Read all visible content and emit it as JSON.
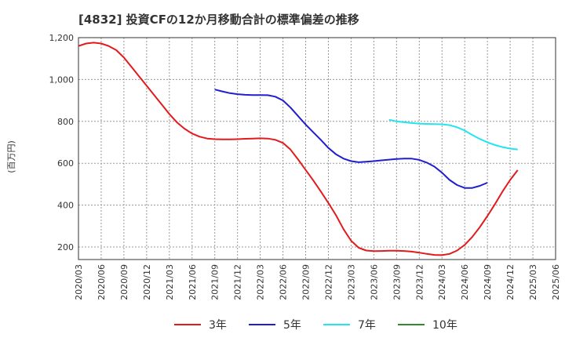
{
  "chart_data": {
    "type": "line",
    "title": "[4832]  投資CFの12か月移動合計の標準偏差の推移",
    "ylabel": "(百万円)",
    "xlabel": "",
    "ylim": [
      140,
      1200
    ],
    "yticks": [
      200,
      400,
      600,
      800,
      1000,
      1200
    ],
    "ytick_labels": [
      "200",
      "400",
      "600",
      "800",
      "1,000",
      "1,200"
    ],
    "x_ticks": [
      "2020/03",
      "2020/06",
      "2020/09",
      "2020/12",
      "2021/03",
      "2021/06",
      "2021/09",
      "2021/12",
      "2022/03",
      "2022/06",
      "2022/09",
      "2022/12",
      "2023/03",
      "2023/06",
      "2023/09",
      "2023/12",
      "2024/03",
      "2024/06",
      "2024/09",
      "2024/12",
      "2025/03",
      "2025/06"
    ],
    "grid": true,
    "legend_position": "bottom",
    "series": [
      {
        "name": "3年",
        "color": "#e31a1c",
        "points": [
          [
            "2020/03",
            1160
          ],
          [
            "2020/04",
            1172
          ],
          [
            "2020/05",
            1176
          ],
          [
            "2020/06",
            1172
          ],
          [
            "2020/07",
            1160
          ],
          [
            "2020/08",
            1140
          ],
          [
            "2020/09",
            1105
          ],
          [
            "2020/10",
            1060
          ],
          [
            "2020/11",
            1015
          ],
          [
            "2020/12",
            970
          ],
          [
            "2021/01",
            925
          ],
          [
            "2021/02",
            880
          ],
          [
            "2021/03",
            835
          ],
          [
            "2021/04",
            795
          ],
          [
            "2021/05",
            765
          ],
          [
            "2021/06",
            742
          ],
          [
            "2021/07",
            727
          ],
          [
            "2021/08",
            718
          ],
          [
            "2021/09",
            715
          ],
          [
            "2021/10",
            714
          ],
          [
            "2021/11",
            714
          ],
          [
            "2021/12",
            715
          ],
          [
            "2022/01",
            717
          ],
          [
            "2022/02",
            718
          ],
          [
            "2022/03",
            719
          ],
          [
            "2022/04",
            718
          ],
          [
            "2022/05",
            712
          ],
          [
            "2022/06",
            697
          ],
          [
            "2022/07",
            665
          ],
          [
            "2022/08",
            618
          ],
          [
            "2022/09",
            568
          ],
          [
            "2022/10",
            518
          ],
          [
            "2022/11",
            465
          ],
          [
            "2022/12",
            410
          ],
          [
            "2023/01",
            352
          ],
          [
            "2023/02",
            285
          ],
          [
            "2023/03",
            230
          ],
          [
            "2023/04",
            196
          ],
          [
            "2023/05",
            183
          ],
          [
            "2023/06",
            180
          ],
          [
            "2023/07",
            181
          ],
          [
            "2023/08",
            182
          ],
          [
            "2023/09",
            182
          ],
          [
            "2023/10",
            181
          ],
          [
            "2023/11",
            178
          ],
          [
            "2023/12",
            173
          ],
          [
            "2024/01",
            167
          ],
          [
            "2024/02",
            162
          ],
          [
            "2024/03",
            161
          ],
          [
            "2024/04",
            167
          ],
          [
            "2024/05",
            183
          ],
          [
            "2024/06",
            210
          ],
          [
            "2024/07",
            248
          ],
          [
            "2024/08",
            295
          ],
          [
            "2024/09",
            348
          ],
          [
            "2024/10",
            405
          ],
          [
            "2024/11",
            465
          ],
          [
            "2024/12",
            520
          ],
          [
            "2025/01",
            567
          ]
        ]
      },
      {
        "name": "5年",
        "color": "#1f1fcf",
        "points": [
          [
            "2021/09",
            952
          ],
          [
            "2021/10",
            943
          ],
          [
            "2021/11",
            935
          ],
          [
            "2021/12",
            930
          ],
          [
            "2022/01",
            927
          ],
          [
            "2022/02",
            926
          ],
          [
            "2022/03",
            926
          ],
          [
            "2022/04",
            925
          ],
          [
            "2022/05",
            918
          ],
          [
            "2022/06",
            900
          ],
          [
            "2022/07",
            866
          ],
          [
            "2022/08",
            825
          ],
          [
            "2022/09",
            785
          ],
          [
            "2022/10",
            748
          ],
          [
            "2022/11",
            712
          ],
          [
            "2022/12",
            673
          ],
          [
            "2023/01",
            643
          ],
          [
            "2023/02",
            622
          ],
          [
            "2023/03",
            610
          ],
          [
            "2023/04",
            605
          ],
          [
            "2023/05",
            607
          ],
          [
            "2023/06",
            610
          ],
          [
            "2023/07",
            614
          ],
          [
            "2023/08",
            617
          ],
          [
            "2023/09",
            620
          ],
          [
            "2023/10",
            622
          ],
          [
            "2023/11",
            622
          ],
          [
            "2023/12",
            616
          ],
          [
            "2024/01",
            603
          ],
          [
            "2024/02",
            584
          ],
          [
            "2024/03",
            555
          ],
          [
            "2024/04",
            520
          ],
          [
            "2024/05",
            496
          ],
          [
            "2024/06",
            482
          ],
          [
            "2024/07",
            482
          ],
          [
            "2024/08",
            492
          ],
          [
            "2024/09",
            507
          ]
        ]
      },
      {
        "name": "7年",
        "color": "#22e5f0",
        "points": [
          [
            "2023/08",
            808
          ],
          [
            "2023/09",
            800
          ],
          [
            "2023/10",
            796
          ],
          [
            "2023/11",
            792
          ],
          [
            "2023/12",
            789
          ],
          [
            "2024/01",
            788
          ],
          [
            "2024/02",
            787
          ],
          [
            "2024/03",
            786
          ],
          [
            "2024/04",
            782
          ],
          [
            "2024/05",
            772
          ],
          [
            "2024/06",
            756
          ],
          [
            "2024/07",
            735
          ],
          [
            "2024/08",
            716
          ],
          [
            "2024/09",
            700
          ],
          [
            "2024/10",
            687
          ],
          [
            "2024/11",
            677
          ],
          [
            "2024/12",
            670
          ],
          [
            "2025/01",
            666
          ]
        ]
      },
      {
        "name": "10年",
        "color": "#2e8b2e",
        "points": []
      }
    ]
  }
}
